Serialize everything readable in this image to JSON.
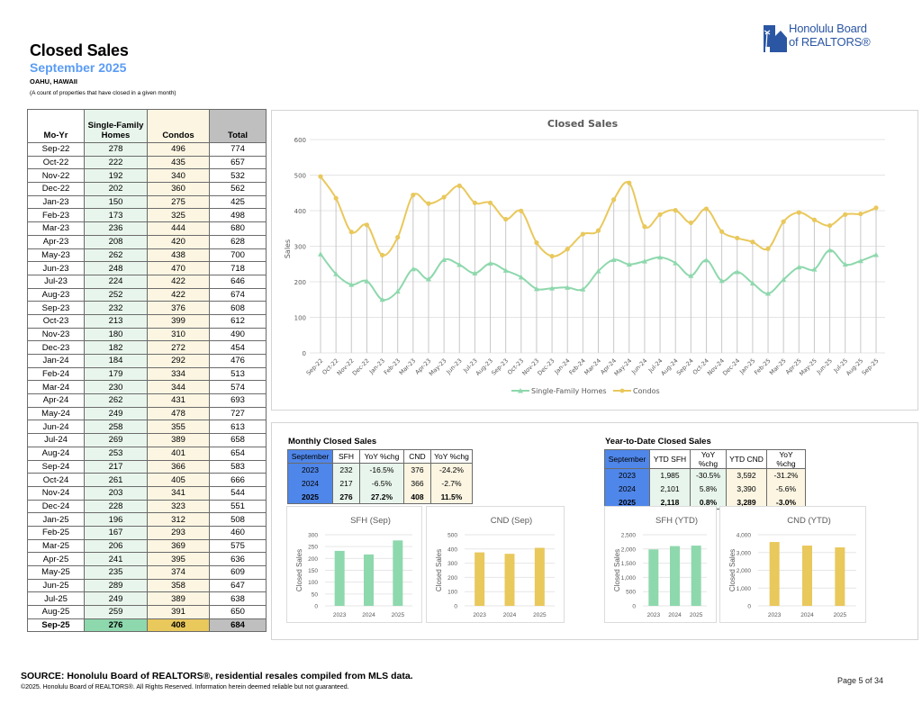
{
  "header": {
    "title": "Closed Sales",
    "subtitle": "September 2025",
    "region": "OAHU, HAWAII",
    "description": "(A count of properties that have closed in a given month)"
  },
  "logo": {
    "line1": "Honolulu Board",
    "line2": "of REALTORS®"
  },
  "colors": {
    "sfh": "#8ed8ad",
    "cnd": "#e9c85c",
    "accent_blue": "#5b9cf5",
    "header_blue": "#4f86e9",
    "logo_blue": "#2b56a3"
  },
  "main_table": {
    "headers": [
      "Mo-Yr",
      "Single-Family Homes",
      "Condos",
      "Total"
    ],
    "rows": [
      [
        "Sep-22",
        "278",
        "496",
        "774"
      ],
      [
        "Oct-22",
        "222",
        "435",
        "657"
      ],
      [
        "Nov-22",
        "192",
        "340",
        "532"
      ],
      [
        "Dec-22",
        "202",
        "360",
        "562"
      ],
      [
        "Jan-23",
        "150",
        "275",
        "425"
      ],
      [
        "Feb-23",
        "173",
        "325",
        "498"
      ],
      [
        "Mar-23",
        "236",
        "444",
        "680"
      ],
      [
        "Apr-23",
        "208",
        "420",
        "628"
      ],
      [
        "May-23",
        "262",
        "438",
        "700"
      ],
      [
        "Jun-23",
        "248",
        "470",
        "718"
      ],
      [
        "Jul-23",
        "224",
        "422",
        "646"
      ],
      [
        "Aug-23",
        "252",
        "422",
        "674"
      ],
      [
        "Sep-23",
        "232",
        "376",
        "608"
      ],
      [
        "Oct-23",
        "213",
        "399",
        "612"
      ],
      [
        "Nov-23",
        "180",
        "310",
        "490"
      ],
      [
        "Dec-23",
        "182",
        "272",
        "454"
      ],
      [
        "Jan-24",
        "184",
        "292",
        "476"
      ],
      [
        "Feb-24",
        "179",
        "334",
        "513"
      ],
      [
        "Mar-24",
        "230",
        "344",
        "574"
      ],
      [
        "Apr-24",
        "262",
        "431",
        "693"
      ],
      [
        "May-24",
        "249",
        "478",
        "727"
      ],
      [
        "Jun-24",
        "258",
        "355",
        "613"
      ],
      [
        "Jul-24",
        "269",
        "389",
        "658"
      ],
      [
        "Aug-24",
        "253",
        "401",
        "654"
      ],
      [
        "Sep-24",
        "217",
        "366",
        "583"
      ],
      [
        "Oct-24",
        "261",
        "405",
        "666"
      ],
      [
        "Nov-24",
        "203",
        "341",
        "544"
      ],
      [
        "Dec-24",
        "228",
        "323",
        "551"
      ],
      [
        "Jan-25",
        "196",
        "312",
        "508"
      ],
      [
        "Feb-25",
        "167",
        "293",
        "460"
      ],
      [
        "Mar-25",
        "206",
        "369",
        "575"
      ],
      [
        "Apr-25",
        "241",
        "395",
        "636"
      ],
      [
        "May-25",
        "235",
        "374",
        "609"
      ],
      [
        "Jun-25",
        "289",
        "358",
        "647"
      ],
      [
        "Jul-25",
        "249",
        "389",
        "638"
      ],
      [
        "Aug-25",
        "259",
        "391",
        "650"
      ],
      [
        "Sep-25",
        "276",
        "408",
        "684"
      ]
    ]
  },
  "monthly_summary": {
    "title": "Monthly Closed Sales",
    "headers": [
      "September",
      "SFH",
      "YoY %chg",
      "CND",
      "YoY %chg"
    ],
    "rows": [
      [
        "2023",
        "232",
        "-16.5%",
        "376",
        "-24.2%"
      ],
      [
        "2024",
        "217",
        "-6.5%",
        "366",
        "-2.7%"
      ],
      [
        "2025",
        "276",
        "27.2%",
        "408",
        "11.5%"
      ]
    ]
  },
  "ytd_summary": {
    "title": "Year-to-Date Closed Sales",
    "headers": [
      "September",
      "YTD SFH",
      "YoY %chg",
      "YTD CND",
      "YoY %chg"
    ],
    "rows": [
      [
        "2023",
        "1,985",
        "-30.5%",
        "3,592",
        "-31.2%"
      ],
      [
        "2024",
        "2,101",
        "5.8%",
        "3,390",
        "-5.6%"
      ],
      [
        "2025",
        "2,118",
        "0.8%",
        "3,289",
        "-3.0%"
      ]
    ]
  },
  "chart_data": [
    {
      "id": "closed-sales-line",
      "type": "line",
      "title": "Closed Sales",
      "xlabel": "",
      "ylabel": "Sales",
      "ylim": [
        0,
        600
      ],
      "yticks": [
        0,
        100,
        200,
        300,
        400,
        500,
        600
      ],
      "grid": true,
      "legend": "bottom",
      "x": [
        "Sep-22",
        "Oct-22",
        "Nov-22",
        "Dec-22",
        "Jan-23",
        "Feb-23",
        "Mar-23",
        "Apr-23",
        "May-23",
        "Jun-23",
        "Jul-23",
        "Aug-23",
        "Sep-23",
        "Oct-23",
        "Nov-23",
        "Dec-23",
        "Jan-24",
        "Feb-24",
        "Mar-24",
        "Apr-24",
        "May-24",
        "Jun-24",
        "Jul-24",
        "Aug-24",
        "Sep-24",
        "Oct-24",
        "Nov-24",
        "Dec-24",
        "Jan-25",
        "Feb-25",
        "Mar-25",
        "Apr-25",
        "May-25",
        "Jun-25",
        "Jul-25",
        "Aug-25",
        "Sep-25"
      ],
      "series": [
        {
          "name": "Single-Family Homes",
          "color": "#8ed8ad",
          "marker": "triangle",
          "values": [
            278,
            222,
            192,
            202,
            150,
            173,
            236,
            208,
            262,
            248,
            224,
            252,
            232,
            213,
            180,
            182,
            184,
            179,
            230,
            262,
            249,
            258,
            269,
            253,
            217,
            261,
            203,
            228,
            196,
            167,
            206,
            241,
            235,
            289,
            249,
            259,
            276
          ]
        },
        {
          "name": "Condos",
          "color": "#e9c85c",
          "marker": "circle",
          "values": [
            496,
            435,
            340,
            360,
            275,
            325,
            444,
            420,
            438,
            470,
            422,
            422,
            376,
            399,
            310,
            272,
            292,
            334,
            344,
            431,
            478,
            355,
            389,
            401,
            366,
            405,
            341,
            323,
            312,
            293,
            369,
            395,
            374,
            358,
            389,
            391,
            408
          ]
        }
      ]
    },
    {
      "id": "sfh-sep",
      "type": "bar",
      "title": "SFH (Sep)",
      "ylabel": "Closed Sales",
      "categories": [
        "2023",
        "2024",
        "2025"
      ],
      "values": [
        232,
        217,
        276
      ],
      "ylim": [
        0,
        300
      ],
      "yticks": [
        "0",
        "50",
        "100",
        "150",
        "200",
        "250",
        "300"
      ],
      "color": "#8ed8ad"
    },
    {
      "id": "cnd-sep",
      "type": "bar",
      "title": "CND (Sep)",
      "ylabel": "Closed Sales",
      "categories": [
        "2023",
        "2024",
        "2025"
      ],
      "values": [
        376,
        366,
        408
      ],
      "ylim": [
        0,
        500
      ],
      "yticks": [
        "0",
        "100",
        "200",
        "300",
        "400",
        "500"
      ],
      "color": "#e9c85c"
    },
    {
      "id": "sfh-ytd",
      "type": "bar",
      "title": "SFH (YTD)",
      "ylabel": "Closed Sales",
      "categories": [
        "2023",
        "2024",
        "2025"
      ],
      "values": [
        1985,
        2101,
        2118
      ],
      "ylim": [
        0,
        2500
      ],
      "yticks": [
        "0",
        "500",
        "1,000",
        "1,500",
        "2,000",
        "2,500"
      ],
      "color": "#8ed8ad"
    },
    {
      "id": "cnd-ytd",
      "type": "bar",
      "title": "CND (YTD)",
      "ylabel": "Closed Sales",
      "categories": [
        "2023",
        "2024",
        "2025"
      ],
      "values": [
        3592,
        3390,
        3289
      ],
      "ylim": [
        0,
        4000
      ],
      "yticks": [
        "0",
        "1,000",
        "2,000",
        "3,000",
        "4,000"
      ],
      "color": "#e9c85c"
    }
  ],
  "footer": {
    "source": "SOURCE: Honolulu Board of REALTORS®, residential resales compiled from MLS data.",
    "copyright": "©2025. Honolulu Board of REALTORS®. All Rights Reserved. Information herein deemed reliable but not guaranteed.",
    "page": "Page 5 of 34"
  }
}
